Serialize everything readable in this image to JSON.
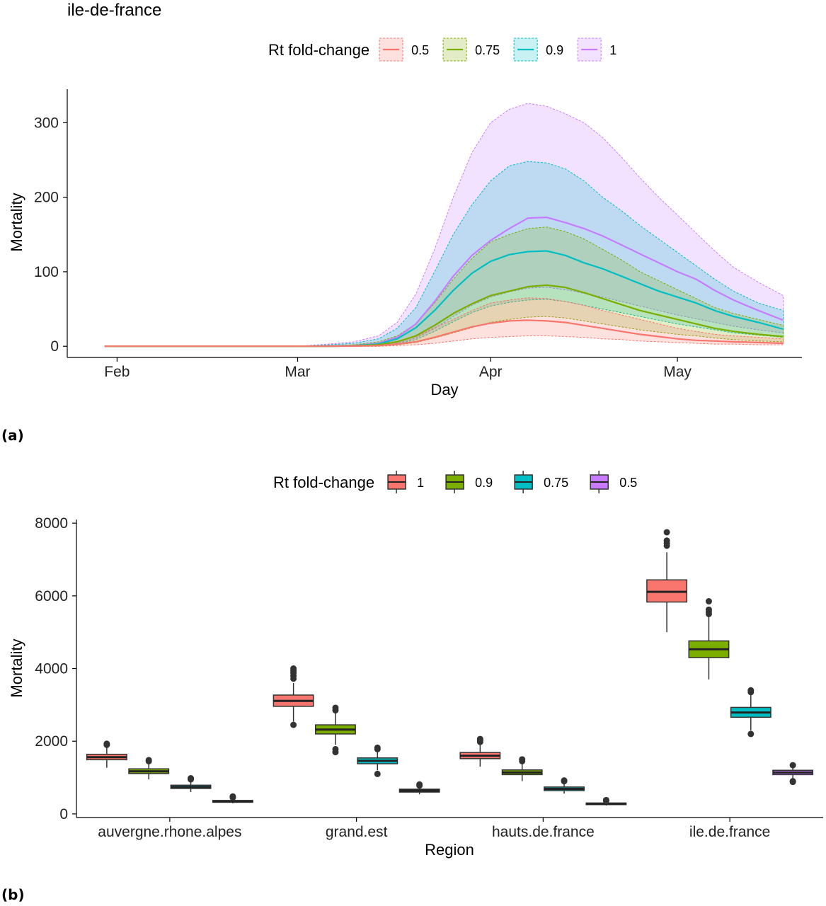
{
  "panel_labels": [
    "(a)",
    "(b)"
  ],
  "chart_data": [
    {
      "type": "area",
      "title": "ile-de-france",
      "xlabel": "Day",
      "ylabel": "Mortality",
      "xlim": [
        "2020-01-24",
        "2020-05-21"
      ],
      "ylim": [
        -15,
        345
      ],
      "x_ticks": [
        {
          "date": "2020-02-01",
          "label": "Feb"
        },
        {
          "date": "2020-03-01",
          "label": "Mar"
        },
        {
          "date": "2020-04-01",
          "label": "Apr"
        },
        {
          "date": "2020-05-01",
          "label": "May"
        }
      ],
      "y_ticks": [
        0,
        100,
        200,
        300
      ],
      "legend": {
        "title": "Rt fold-change",
        "position": "top"
      },
      "x": [
        "2020-01-30",
        "2020-02-10",
        "2020-02-20",
        "2020-03-01",
        "2020-03-06",
        "2020-03-10",
        "2020-03-14",
        "2020-03-17",
        "2020-03-20",
        "2020-03-23",
        "2020-03-26",
        "2020-03-29",
        "2020-04-01",
        "2020-04-04",
        "2020-04-07",
        "2020-04-10",
        "2020-04-13",
        "2020-04-16",
        "2020-04-19",
        "2020-04-22",
        "2020-04-25",
        "2020-04-28",
        "2020-05-01",
        "2020-05-04",
        "2020-05-07",
        "2020-05-10",
        "2020-05-14",
        "2020-05-18"
      ],
      "series": [
        {
          "name": "0.5",
          "color": "#F8766D",
          "mean": [
            0,
            0,
            0,
            0,
            0,
            0.2,
            1,
            3,
            6,
            12,
            19,
            26,
            31,
            34,
            35,
            34,
            32,
            28,
            24,
            20,
            16,
            13,
            10,
            8,
            7,
            6,
            5,
            4
          ],
          "lower": [
            0,
            0,
            0,
            0,
            0,
            0,
            0,
            1,
            2,
            4,
            7,
            10,
            12,
            13,
            14,
            14,
            13,
            12,
            10,
            9,
            7,
            6,
            5,
            4,
            3,
            3,
            2,
            2
          ],
          "upper": [
            0,
            0,
            0,
            0,
            0.5,
            1,
            3,
            7,
            13,
            25,
            36,
            48,
            58,
            62,
            65,
            64,
            60,
            55,
            48,
            42,
            36,
            30,
            24,
            20,
            16,
            14,
            12,
            10
          ]
        },
        {
          "name": "0.75",
          "color": "#7CAE00",
          "mean": [
            0,
            0,
            0,
            0,
            0,
            0.5,
            2,
            6,
            14,
            28,
            44,
            57,
            68,
            74,
            80,
            82,
            79,
            72,
            64,
            56,
            48,
            42,
            36,
            30,
            24,
            20,
            16,
            13
          ],
          "lower": [
            0,
            0,
            0,
            0,
            0,
            0,
            0,
            2,
            5,
            11,
            18,
            25,
            32,
            36,
            39,
            40,
            38,
            34,
            30,
            26,
            22,
            19,
            16,
            14,
            11,
            9,
            7,
            6
          ],
          "upper": [
            0,
            0,
            0,
            0,
            1,
            2,
            6,
            14,
            30,
            58,
            90,
            118,
            140,
            150,
            158,
            160,
            154,
            144,
            130,
            116,
            100,
            88,
            76,
            64,
            52,
            44,
            36,
            28
          ]
        },
        {
          "name": "0.9",
          "color": "#00BFC4",
          "mean": [
            0,
            0,
            0,
            0,
            0,
            0.7,
            3,
            10,
            25,
            48,
            75,
            98,
            114,
            123,
            127,
            128,
            122,
            112,
            104,
            94,
            84,
            74,
            66,
            58,
            48,
            40,
            32,
            23
          ],
          "lower": [
            0,
            0,
            0,
            0,
            0,
            0,
            1,
            3,
            9,
            20,
            33,
            45,
            54,
            59,
            62,
            63,
            60,
            55,
            50,
            45,
            40,
            35,
            30,
            26,
            22,
            18,
            15,
            12
          ],
          "upper": [
            0,
            0,
            0,
            0,
            2,
            4,
            10,
            24,
            52,
            100,
            150,
            190,
            222,
            242,
            248,
            246,
            238,
            222,
            200,
            182,
            162,
            144,
            126,
            108,
            90,
            74,
            58,
            48
          ]
        },
        {
          "name": "1",
          "color": "#C77CFF",
          "mean": [
            0,
            0,
            0,
            0,
            0.3,
            1,
            4,
            12,
            30,
            60,
            94,
            122,
            142,
            158,
            172,
            173,
            166,
            158,
            148,
            136,
            124,
            112,
            100,
            90,
            75,
            62,
            48,
            35
          ],
          "lower": [
            0,
            0,
            0,
            0,
            0,
            0,
            1,
            4,
            11,
            24,
            40,
            55,
            66,
            73,
            78,
            79,
            76,
            71,
            66,
            60,
            54,
            48,
            42,
            37,
            32,
            27,
            22,
            18
          ],
          "upper": [
            0,
            0,
            0,
            0,
            3,
            6,
            14,
            32,
            70,
            130,
            200,
            260,
            300,
            318,
            326,
            322,
            312,
            300,
            280,
            254,
            226,
            200,
            176,
            152,
            128,
            106,
            86,
            68
          ]
        }
      ]
    },
    {
      "type": "box",
      "xlabel": "Region",
      "ylabel": "Mortality",
      "ylim": [
        -100,
        8100
      ],
      "y_ticks": [
        0,
        2000,
        4000,
        6000,
        8000
      ],
      "legend": {
        "title": "Rt fold-change",
        "position": "top"
      },
      "categories": [
        "auvergne.rhone.alpes",
        "grand.est",
        "hauts.de.france",
        "ile.de.france"
      ],
      "series": [
        {
          "name": "1",
          "color": "#F8766D",
          "boxes": [
            {
              "q1": 1490,
              "median": 1560,
              "q3": 1640,
              "lower": 1270,
              "upper": 1860,
              "outliers": [
                1900,
                1930
              ]
            },
            {
              "q1": 2960,
              "median": 3110,
              "q3": 3270,
              "lower": 2540,
              "upper": 3600,
              "outliers": [
                2450,
                3720,
                3800,
                3880,
                3940,
                4000
              ]
            },
            {
              "q1": 1520,
              "median": 1600,
              "q3": 1690,
              "lower": 1300,
              "upper": 1930,
              "outliers": [
                1980,
                2030,
                2060
              ]
            },
            {
              "q1": 5830,
              "median": 6110,
              "q3": 6440,
              "lower": 5000,
              "upper": 7200,
              "outliers": [
                7380,
                7450,
                7520,
                7750
              ]
            }
          ]
        },
        {
          "name": "0.9",
          "color": "#7CAE00",
          "boxes": [
            {
              "q1": 1110,
              "median": 1170,
              "q3": 1240,
              "lower": 950,
              "upper": 1400,
              "outliers": [
                1450,
                1480
              ]
            },
            {
              "q1": 2200,
              "median": 2320,
              "q3": 2450,
              "lower": 1900,
              "upper": 2780,
              "outliers": [
                1700,
                1780,
                2850,
                2920
              ]
            },
            {
              "q1": 1080,
              "median": 1140,
              "q3": 1210,
              "lower": 900,
              "upper": 1380,
              "outliers": [
                1450,
                1500
              ]
            },
            {
              "q1": 4300,
              "median": 4530,
              "q3": 4760,
              "lower": 3700,
              "upper": 5430,
              "outliers": [
                5500,
                5560,
                5620,
                5850
              ]
            }
          ]
        },
        {
          "name": "0.75",
          "color": "#00BFC4",
          "boxes": [
            {
              "q1": 700,
              "median": 740,
              "q3": 790,
              "lower": 600,
              "upper": 900,
              "outliers": [
                950,
                980
              ]
            },
            {
              "q1": 1380,
              "median": 1460,
              "q3": 1540,
              "lower": 1200,
              "upper": 1700,
              "outliers": [
                1100,
                1780,
                1820
              ]
            },
            {
              "q1": 640,
              "median": 690,
              "q3": 740,
              "lower": 560,
              "upper": 850,
              "outliers": [
                900,
                920
              ]
            },
            {
              "q1": 2660,
              "median": 2790,
              "q3": 2930,
              "lower": 2300,
              "upper": 3300,
              "outliers": [
                2200,
                3350,
                3400
              ]
            }
          ]
        },
        {
          "name": "0.5",
          "color": "#C77CFF",
          "boxes": [
            {
              "q1": 320,
              "median": 345,
              "q3": 370,
              "lower": 290,
              "upper": 410,
              "outliers": [
                450,
                480
              ]
            },
            {
              "q1": 600,
              "median": 640,
              "q3": 680,
              "lower": 540,
              "upper": 740,
              "outliers": [
                780,
                810
              ]
            },
            {
              "q1": 255,
              "median": 275,
              "q3": 300,
              "lower": 230,
              "upper": 330,
              "outliers": [
                360,
                380
              ]
            },
            {
              "q1": 1080,
              "median": 1140,
              "q3": 1200,
              "lower": 950,
              "upper": 1290,
              "outliers": [
                880,
                900,
                1340
              ]
            }
          ]
        }
      ]
    }
  ]
}
